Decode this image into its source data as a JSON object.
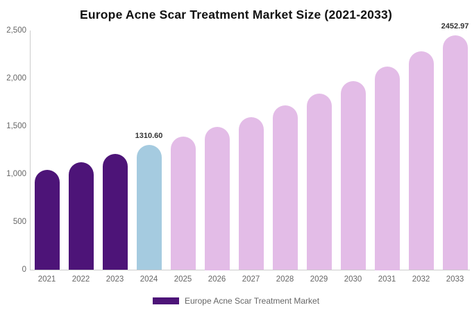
{
  "title": "Europe Acne Scar Treatment Market Size (2021-2033)",
  "legend": {
    "label": "Europe Acne Scar Treatment Market",
    "swatch_color": "#4D1478"
  },
  "colors": {
    "historical_bar": "#4D1478",
    "current_bar": "#A5CBE0",
    "forecast_bar": "#E3BCE7",
    "title_text": "#111111",
    "axis_text": "#666666",
    "axis_line": "#cccccc",
    "value_label_text": "#333333",
    "background": "#ffffff"
  },
  "chart_data": {
    "type": "bar",
    "title": "Europe Acne Scar Treatment Market Size (2021-2033)",
    "xlabel": "",
    "ylabel": "",
    "ylim": [
      0,
      2500
    ],
    "yticks": [
      0,
      500,
      1000,
      1500,
      2000,
      2500
    ],
    "ytick_labels": [
      "0",
      "500",
      "1,000",
      "1,500",
      "2,000",
      "2,500"
    ],
    "grid": false,
    "legend_position": "bottom",
    "legend_entries": [
      "Europe Acne Scar Treatment Market"
    ],
    "categories": [
      "2021",
      "2022",
      "2023",
      "2024",
      "2025",
      "2026",
      "2027",
      "2028",
      "2029",
      "2030",
      "2031",
      "2032",
      "2033"
    ],
    "values": [
      1050,
      1130,
      1215,
      1310.6,
      1395,
      1500,
      1600,
      1720,
      1845,
      1975,
      2125,
      2285,
      2452.97
    ],
    "segments": [
      "historical",
      "historical",
      "historical",
      "current",
      "forecast",
      "forecast",
      "forecast",
      "forecast",
      "forecast",
      "forecast",
      "forecast",
      "forecast",
      "forecast"
    ],
    "point_labels": [
      null,
      null,
      null,
      "1310.60",
      null,
      null,
      null,
      null,
      null,
      null,
      null,
      null,
      "2452.97"
    ],
    "annotations": [
      "Values for 2024 and 2033 are labeled; 2021-2023 historical bars dark purple, 2024 highlighted blue, 2025-2033 forecast bars light pink"
    ]
  }
}
